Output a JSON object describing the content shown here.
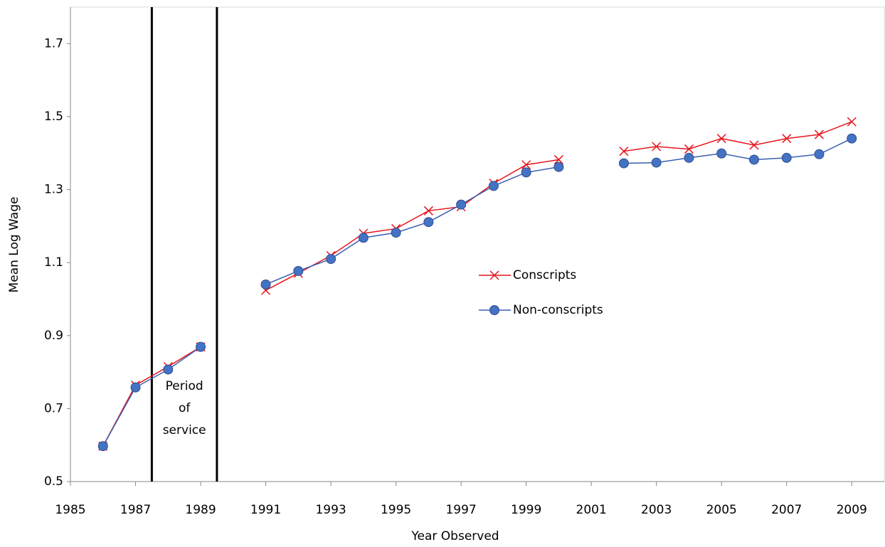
{
  "chart_data": {
    "type": "line",
    "x": [
      1986,
      1987,
      1988,
      1989,
      1990,
      1991,
      1992,
      1993,
      1994,
      1995,
      1996,
      1997,
      1998,
      1999,
      2000,
      2001,
      2002,
      2003,
      2004,
      2005,
      2006,
      2007,
      2008,
      2009
    ],
    "series": [
      {
        "name": "Conscripts",
        "color": "#e8141c",
        "marker": "x",
        "values": [
          0.597,
          0.764,
          0.815,
          0.869,
          null,
          1.024,
          1.071,
          1.119,
          1.18,
          1.193,
          1.242,
          1.253,
          1.317,
          1.368,
          1.382,
          null,
          1.405,
          1.418,
          1.411,
          1.44,
          1.422,
          1.44,
          1.451,
          1.486
        ]
      },
      {
        "name": "Non-conscripts",
        "color": "#4472c4",
        "marker": "circle",
        "values": [
          0.597,
          0.758,
          0.807,
          0.869,
          null,
          1.04,
          1.077,
          1.11,
          1.168,
          1.182,
          1.211,
          1.259,
          1.31,
          1.347,
          1.362,
          null,
          1.372,
          1.374,
          1.387,
          1.399,
          1.382,
          1.387,
          1.397,
          1.44
        ]
      }
    ],
    "xlim": [
      1985,
      2010
    ],
    "xticks": [
      1985,
      1987,
      1989,
      1991,
      1993,
      1995,
      1997,
      1999,
      2001,
      2003,
      2005,
      2007,
      2009
    ],
    "ylim": [
      0.5,
      1.8
    ],
    "yticks": [
      0.5,
      0.7,
      0.9,
      1.1,
      1.3,
      1.5,
      1.7
    ],
    "xlabel": "Year Observed",
    "ylabel": "Mean Log Wage",
    "vlines": [
      1987.5,
      1989.5
    ],
    "annotation": [
      "Period",
      "of",
      "service"
    ]
  }
}
